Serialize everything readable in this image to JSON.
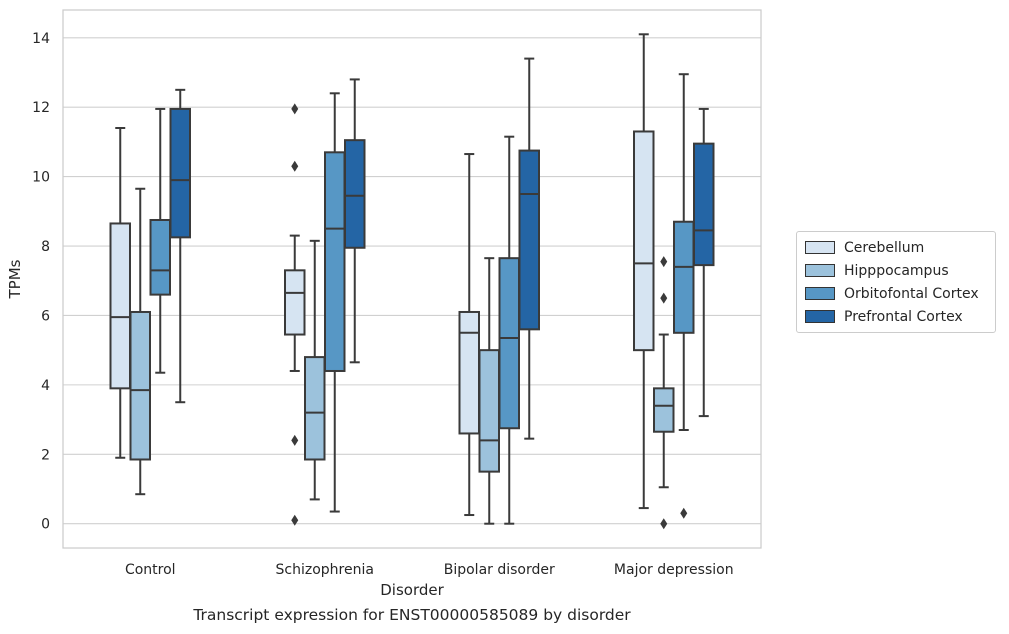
{
  "chart_data": {
    "type": "box",
    "title": "Transcript expression for ENST00000585089 by disorder",
    "xlabel": "Disorder",
    "ylabel": "TPMs",
    "ylim": [
      -0.7,
      14.8
    ],
    "yticks": [
      0,
      2,
      4,
      6,
      8,
      10,
      12,
      14
    ],
    "grid": "horizontal",
    "legend_position": "right",
    "categories": [
      "Control",
      "Schizophrenia",
      "Bipolar disorder",
      "Major depression"
    ],
    "series": [
      {
        "name": "Cerebellum",
        "color": "#d6e4f2",
        "boxes": [
          {
            "whislo": 1.9,
            "q1": 3.9,
            "med": 5.95,
            "q3": 8.65,
            "whishi": 11.4,
            "fliers": []
          },
          {
            "whislo": 4.4,
            "q1": 5.45,
            "med": 6.65,
            "q3": 7.3,
            "whishi": 8.3,
            "fliers": [
              11.95,
              10.3,
              2.4,
              0.1
            ]
          },
          {
            "whislo": 0.25,
            "q1": 2.6,
            "med": 5.5,
            "q3": 6.1,
            "whishi": 10.65,
            "fliers": []
          },
          {
            "whislo": 0.45,
            "q1": 5.0,
            "med": 7.5,
            "q3": 11.3,
            "whishi": 14.1,
            "fliers": []
          }
        ]
      },
      {
        "name": "Hipppocampus",
        "color": "#9cc2dc",
        "boxes": [
          {
            "whislo": 0.85,
            "q1": 1.85,
            "med": 3.85,
            "q3": 6.1,
            "whishi": 9.65,
            "fliers": []
          },
          {
            "whislo": 0.7,
            "q1": 1.85,
            "med": 3.2,
            "q3": 4.8,
            "whishi": 8.15,
            "fliers": []
          },
          {
            "whislo": 0.0,
            "q1": 1.5,
            "med": 2.4,
            "q3": 5.0,
            "whishi": 7.65,
            "fliers": []
          },
          {
            "whislo": 1.05,
            "q1": 2.65,
            "med": 3.4,
            "q3": 3.9,
            "whishi": 5.45,
            "fliers": [
              7.55,
              6.5,
              0.0
            ]
          }
        ]
      },
      {
        "name": "Orbitofontal Cortex",
        "color": "#5797c5",
        "boxes": [
          {
            "whislo": 4.35,
            "q1": 6.6,
            "med": 7.3,
            "q3": 8.75,
            "whishi": 11.95,
            "fliers": []
          },
          {
            "whislo": 0.35,
            "q1": 4.4,
            "med": 8.5,
            "q3": 10.7,
            "whishi": 12.4,
            "fliers": []
          },
          {
            "whislo": 0.0,
            "q1": 2.75,
            "med": 5.35,
            "q3": 7.65,
            "whishi": 11.15,
            "fliers": []
          },
          {
            "whislo": 2.7,
            "q1": 5.5,
            "med": 7.4,
            "q3": 8.7,
            "whishi": 12.95,
            "fliers": [
              0.3
            ]
          }
        ]
      },
      {
        "name": "Prefrontal Cortex",
        "color": "#2465a5",
        "boxes": [
          {
            "whislo": 3.5,
            "q1": 8.25,
            "med": 9.9,
            "q3": 11.95,
            "whishi": 12.5,
            "fliers": []
          },
          {
            "whislo": 4.65,
            "q1": 7.95,
            "med": 9.45,
            "q3": 11.05,
            "whishi": 12.8,
            "fliers": []
          },
          {
            "whislo": 2.45,
            "q1": 5.6,
            "med": 9.5,
            "q3": 10.75,
            "whishi": 13.4,
            "fliers": []
          },
          {
            "whislo": 3.1,
            "q1": 7.45,
            "med": 8.45,
            "q3": 10.95,
            "whishi": 11.95,
            "fliers": []
          }
        ]
      }
    ]
  }
}
